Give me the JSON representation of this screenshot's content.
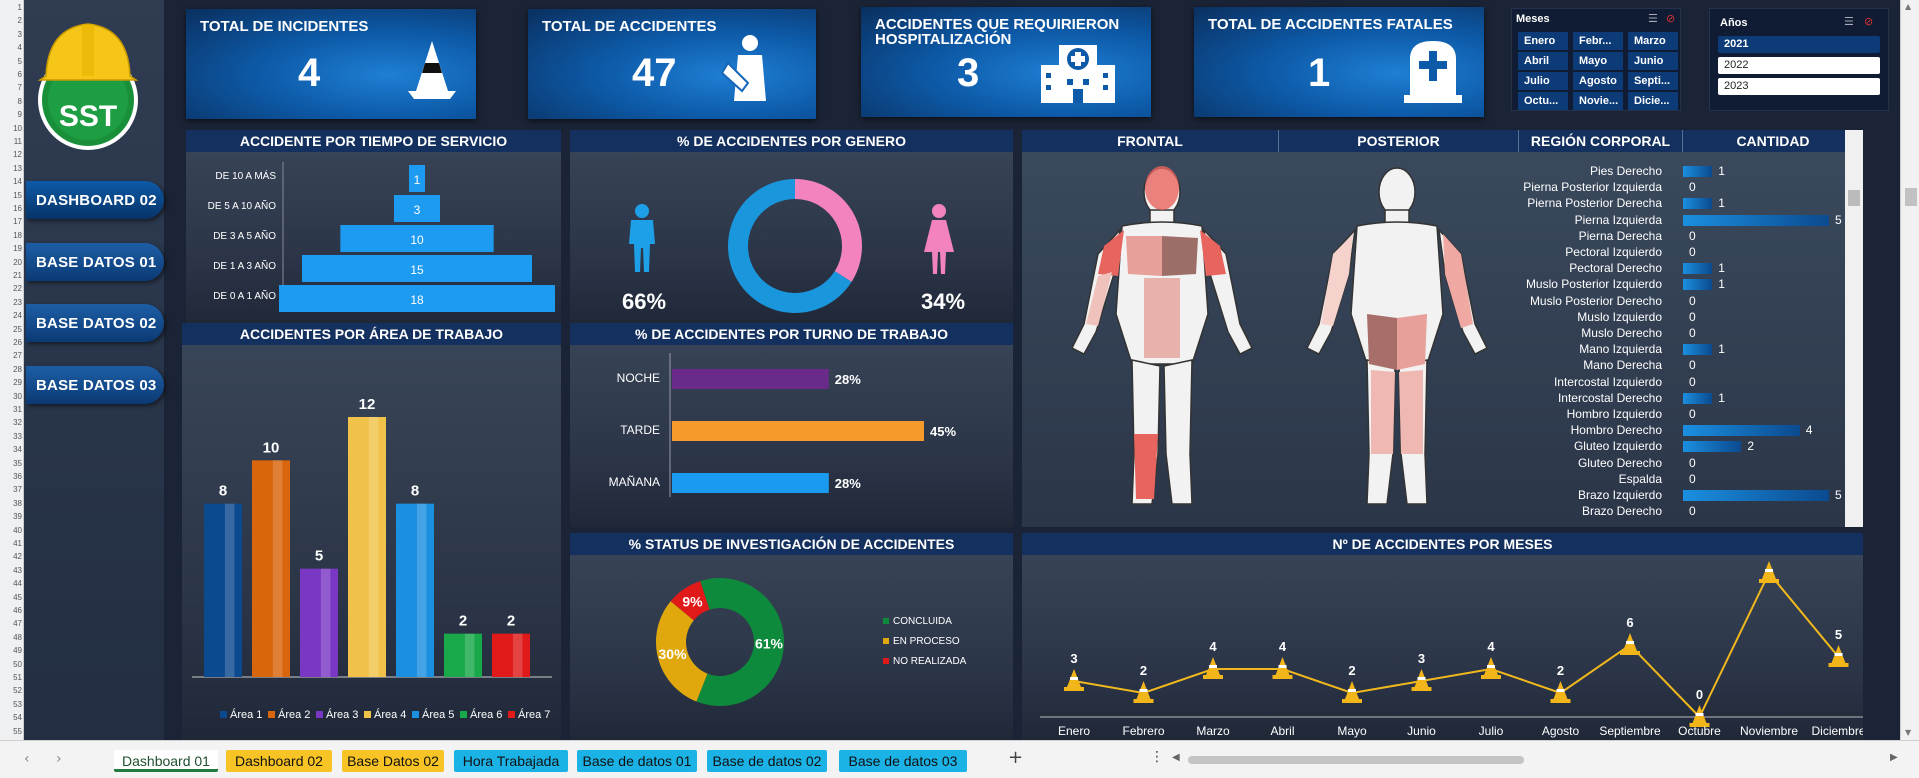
{
  "sidebar": {
    "logo_text": "SST",
    "buttons": [
      "DASHBOARD 02",
      "BASE DATOS 01",
      "BASE DATOS 02",
      "BASE DATOS 03"
    ]
  },
  "kpis": [
    {
      "title": "TOTAL DE INCIDENTES",
      "value": "4",
      "icon": "traffic-cone-icon"
    },
    {
      "title": "TOTAL DE ACCIDENTES",
      "value": "47",
      "icon": "injured-person-icon"
    },
    {
      "title": "ACCIDENTES QUE REQUIRIERON HOSPITALIZACIÓN",
      "value": "3",
      "icon": "hospital-icon"
    },
    {
      "title": "TOTAL DE ACCIDENTES FATALES",
      "value": "1",
      "icon": "tombstone-icon"
    }
  ],
  "slicer_meses": {
    "title": "Meses",
    "items": [
      "Enero",
      "Febr...",
      "Marzo",
      "Abril",
      "Mayo",
      "Junio",
      "Julio",
      "Agosto",
      "Septi...",
      "Octu...",
      "Novie...",
      "Dicie..."
    ]
  },
  "slicer_anios": {
    "title": "Años",
    "items": [
      "2021",
      "2022",
      "2023"
    ],
    "selected": "2021"
  },
  "tiempo_servicio": {
    "title": "ACCIDENTE POR TIEMPO DE SERVICIO",
    "categories": [
      "DE 10 A MÁS",
      "DE 5 A 10 AÑO",
      "DE 3 A 5 AÑO",
      "DE 1 A 3 AÑO",
      "DE 0 A 1 AÑO"
    ],
    "values": [
      1,
      3,
      10,
      15,
      18
    ]
  },
  "genero": {
    "title": "% DE ACCIDENTES POR GENERO",
    "male_pct": "66%",
    "female_pct": "34%",
    "male_value": 66,
    "female_value": 34
  },
  "area_trabajo": {
    "title": "ACCIDENTES POR ÁREA DE TRABAJO",
    "categories": [
      "Área 1",
      "Área 2",
      "Área 3",
      "Área 4",
      "Área 5",
      "Área 6",
      "Área 7"
    ],
    "values": [
      8,
      10,
      5,
      12,
      8,
      2,
      2
    ],
    "colors": [
      "#0b4a8f",
      "#d9650c",
      "#7a37c4",
      "#f1c24a",
      "#1b8fe0",
      "#19a84a",
      "#e01919"
    ]
  },
  "turno": {
    "title": "%  DE ACCIDENTES POR TURNO DE TRABAJO",
    "categories": [
      "NOCHE",
      "TARDE",
      "MAÑANA"
    ],
    "values": [
      28,
      45,
      28
    ],
    "labels": [
      "28%",
      "45%",
      "28%"
    ],
    "colors": [
      "#6a2a8a",
      "#f59a2b",
      "#1a9bf0"
    ]
  },
  "status": {
    "title": "%  STATUS DE INVESTIGACIÓN DE ACCIDENTES",
    "categories": [
      "CONCLUIDA",
      "EN PROCESO",
      "NO REALIZADA"
    ],
    "values": [
      61,
      30,
      9
    ],
    "labels": [
      "61%",
      "30%",
      "9%"
    ],
    "colors": [
      "#0e8a3c",
      "#e0a80c",
      "#e01919"
    ]
  },
  "region": {
    "headers": [
      "FRONTAL",
      "POSTERIOR",
      "REGIÓN CORPORAL",
      "CANTIDAD"
    ],
    "items": [
      "Pies Derecho",
      "Pierna Posterior Izquierda",
      "Pierna Posterior Derecha",
      "Pierna Izquierda",
      "Pierna Derecha",
      "Pectoral Izquierdo",
      "Pectoral Derecho",
      "Muslo Posterior Izquierdo",
      "Muslo Posterior Derecho",
      "Muslo Izquierdo",
      "Muslo Derecho",
      "Mano Izquierda",
      "Mano Derecha",
      "Intercostal Izquierdo",
      "Intercostal Derecho",
      "Hombro Izquierdo",
      "Hombro Derecho",
      "Gluteo Izquierdo",
      "Gluteo Derecho",
      "Espalda",
      "Brazo Izquierdo",
      "Brazo Derecho"
    ],
    "values": [
      1,
      0,
      1,
      5,
      0,
      0,
      1,
      1,
      0,
      0,
      0,
      1,
      0,
      0,
      1,
      0,
      4,
      2,
      0,
      0,
      5,
      0
    ]
  },
  "meses": {
    "title": "Nº DE ACCIDENTES POR MESES",
    "categories": [
      "Enero",
      "Febrero",
      "Marzo",
      "Abril",
      "Mayo",
      "Junio",
      "Julio",
      "Agosto",
      "Septiembre",
      "Octubre",
      "Noviembre",
      "Diciembre"
    ],
    "values": [
      3,
      2,
      4,
      4,
      2,
      3,
      4,
      2,
      6,
      0,
      12,
      5
    ]
  },
  "sheet_tabs": [
    {
      "label": "Dashboard 01",
      "active": true,
      "color": "#ffffff"
    },
    {
      "label": "Dashboard 02",
      "color": "#f7c325"
    },
    {
      "label": "Base Datos 02",
      "color": "#f7c325"
    },
    {
      "label": "Hora Trabajada",
      "color": "#1bb2e6"
    },
    {
      "label": "Base de datos 01",
      "color": "#1bb2e6"
    },
    {
      "label": "Base de datos 02",
      "color": "#1bb2e6"
    },
    {
      "label": "Base de datos 03",
      "color": "#1bb2e6"
    }
  ],
  "chart_data": [
    {
      "type": "bar",
      "title": "ACCIDENTE POR TIEMPO DE SERVICIO",
      "categories": [
        "DE 10 A MÁS",
        "DE 5 A 10 AÑO",
        "DE 3 A 5 AÑO",
        "DE 1 A 3 AÑO",
        "DE 0 A 1 AÑO"
      ],
      "values": [
        1,
        3,
        10,
        15,
        18
      ]
    },
    {
      "type": "pie",
      "title": "% DE ACCIDENTES POR GENERO",
      "categories": [
        "66%",
        "34%"
      ],
      "values": [
        66,
        34
      ]
    },
    {
      "type": "bar",
      "title": "ACCIDENTES POR ÁREA DE TRABAJO",
      "categories": [
        "Área 1",
        "Área 2",
        "Área 3",
        "Área 4",
        "Área 5",
        "Área 6",
        "Área 7"
      ],
      "values": [
        8,
        10,
        5,
        12,
        8,
        2,
        2
      ]
    },
    {
      "type": "bar",
      "title": "%  DE ACCIDENTES POR TURNO DE TRABAJO",
      "categories": [
        "NOCHE",
        "TARDE",
        "MAÑANA"
      ],
      "values": [
        28,
        45,
        28
      ]
    },
    {
      "type": "pie",
      "title": "%  STATUS DE INVESTIGACIÓN DE ACCIDENTES",
      "categories": [
        "CONCLUIDA",
        "EN PROCESO",
        "NO REALIZADA"
      ],
      "values": [
        61,
        30,
        9
      ]
    },
    {
      "type": "line",
      "title": "Nº DE ACCIDENTES POR MESES",
      "categories": [
        "Enero",
        "Febrero",
        "Marzo",
        "Abril",
        "Mayo",
        "Junio",
        "Julio",
        "Agosto",
        "Septiembre",
        "Octubre",
        "Noviembre",
        "Diciembre"
      ],
      "values": [
        3,
        2,
        4,
        4,
        2,
        3,
        4,
        2,
        6,
        0,
        12,
        5
      ]
    }
  ]
}
